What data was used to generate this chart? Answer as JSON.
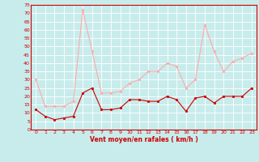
{
  "x": [
    0,
    1,
    2,
    3,
    4,
    5,
    6,
    7,
    8,
    9,
    10,
    11,
    12,
    13,
    14,
    15,
    16,
    17,
    18,
    19,
    20,
    21,
    22,
    23
  ],
  "wind_avg": [
    12,
    8,
    6,
    7,
    8,
    22,
    25,
    12,
    12,
    13,
    18,
    18,
    17,
    17,
    20,
    18,
    11,
    19,
    20,
    16,
    20,
    20,
    20,
    25
  ],
  "wind_gust": [
    30,
    14,
    14,
    14,
    17,
    72,
    47,
    22,
    22,
    23,
    28,
    30,
    35,
    35,
    40,
    38,
    25,
    30,
    63,
    47,
    35,
    41,
    43,
    46
  ],
  "bg_color": "#c8ecec",
  "grid_color": "#ffffff",
  "line_avg_color": "#cc0000",
  "line_gust_color": "#ffaaaa",
  "xlabel": "Vent moyen/en rafales ( km/h )",
  "xlabel_color": "#cc0000",
  "tick_color": "#cc0000",
  "ylim": [
    0,
    75
  ],
  "yticks": [
    0,
    5,
    10,
    15,
    20,
    25,
    30,
    35,
    40,
    45,
    50,
    55,
    60,
    65,
    70,
    75
  ],
  "marker_size": 2,
  "line_width": 0.8,
  "tick_fontsize": 4.5,
  "xlabel_fontsize": 5.5
}
